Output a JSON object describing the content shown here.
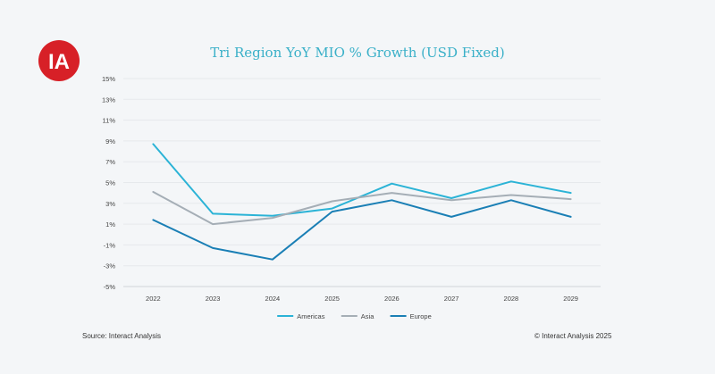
{
  "logo": {
    "text": "IA",
    "color": "#d72027"
  },
  "footer": {
    "source": "Source: Interact Analysis",
    "copyright": "© Interact Analysis 2025"
  },
  "chart_data": {
    "type": "line",
    "title": "Tri Region YoY MIO % Growth (USD Fixed)",
    "xlabel": "",
    "ylabel": "",
    "x": [
      "2022",
      "2023",
      "2024",
      "2025",
      "2026",
      "2027",
      "2028",
      "2029"
    ],
    "y_ticks": [
      "15%",
      "13%",
      "11%",
      "9%",
      "7%",
      "5%",
      "3%",
      "1%",
      "-1%",
      "-3%",
      "-5%"
    ],
    "ylim": [
      -5,
      15
    ],
    "grid": true,
    "legend_position": "bottom",
    "series": [
      {
        "name": "Americas",
        "color": "#2bb3d6",
        "values": [
          8.7,
          2.0,
          1.8,
          2.5,
          4.9,
          3.5,
          5.1,
          4.0
        ]
      },
      {
        "name": "Asia",
        "color": "#a5aeb6",
        "values": [
          4.1,
          1.0,
          1.6,
          3.2,
          4.0,
          3.3,
          3.8,
          3.4
        ]
      },
      {
        "name": "Europe",
        "color": "#1a7fb5",
        "values": [
          1.4,
          -1.3,
          -2.4,
          2.2,
          3.3,
          1.7,
          3.3,
          1.7
        ]
      }
    ]
  }
}
